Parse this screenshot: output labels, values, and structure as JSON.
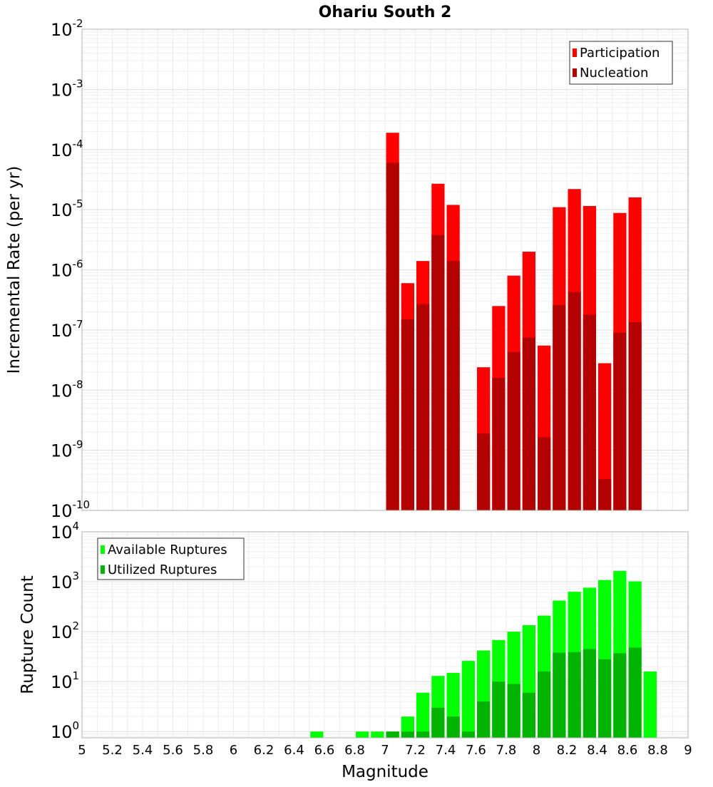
{
  "chart_data": [
    {
      "type": "bar",
      "title": "Ohariu South 2",
      "ylabel": "Incremental Rate (per yr)",
      "xlabel": "",
      "y_scale": "log",
      "ylim": [
        1e-10,
        0.01
      ],
      "xlim": [
        5,
        9
      ],
      "x_tick_labels": [
        "5",
        "5.2",
        "5.4",
        "5.6",
        "5.8",
        "6",
        "6.2",
        "6.4",
        "6.6",
        "6.8",
        "7",
        "7.2",
        "7.4",
        "7.6",
        "7.8",
        "8",
        "8.2",
        "8.4",
        "8.6",
        "8.8",
        "9"
      ],
      "y_tick_exponents": [
        "-2",
        "-3",
        "-4",
        "-5",
        "-6",
        "-7",
        "-8",
        "-9",
        "-10"
      ],
      "y_tick_base": "10",
      "legend_position": "top-right",
      "grid": true,
      "bar_width": 0.1,
      "x": [
        7.05,
        7.15,
        7.25,
        7.35,
        7.45,
        7.55,
        7.65,
        7.75,
        7.85,
        7.95,
        8.05,
        8.15,
        8.25,
        8.35,
        8.45,
        8.55,
        8.65
      ],
      "series": [
        {
          "name": "Participation",
          "color": "#ff0000",
          "values": [
            0.00019,
            6e-07,
            1.4e-06,
            2.7e-05,
            1.2e-05,
            null,
            2.4e-08,
            2.5e-07,
            8e-07,
            2e-06,
            5.5e-08,
            1.1e-05,
            2.2e-05,
            1.15e-05,
            2.8e-08,
            8.8e-06,
            1.6e-05
          ]
        },
        {
          "name": "Nucleation",
          "color": "#b30000",
          "values": [
            6e-05,
            1.5e-07,
            2.7e-07,
            3.8e-06,
            1.4e-06,
            null,
            1.9e-09,
            1.6e-08,
            4.3e-08,
            7.5e-08,
            1.65e-09,
            2.6e-07,
            4.3e-07,
            1.8e-07,
            3.3e-10,
            9e-08,
            1.35e-07
          ]
        }
      ]
    },
    {
      "type": "bar",
      "title": "",
      "ylabel": "Rupture Count",
      "xlabel": "Magnitude",
      "y_scale": "log",
      "ylim": [
        0.75,
        10000
      ],
      "xlim": [
        5,
        9
      ],
      "x_tick_labels": [
        "5",
        "5.2",
        "5.4",
        "5.6",
        "5.8",
        "6",
        "6.2",
        "6.4",
        "6.6",
        "6.8",
        "7",
        "7.2",
        "7.4",
        "7.6",
        "7.8",
        "8",
        "8.2",
        "8.4",
        "8.6",
        "8.8",
        "9"
      ],
      "y_tick_exponents": [
        "4",
        "3",
        "2",
        "1",
        "0"
      ],
      "y_tick_base": "10",
      "legend_position": "top-left",
      "grid": true,
      "bar_width": 0.1,
      "x": [
        6.55,
        6.85,
        6.95,
        7.05,
        7.15,
        7.25,
        7.35,
        7.45,
        7.55,
        7.65,
        7.75,
        7.85,
        7.95,
        8.05,
        8.15,
        8.25,
        8.35,
        8.45,
        8.55,
        8.65,
        8.75
      ],
      "series": [
        {
          "name": "Available Ruptures",
          "color": "#00ff00",
          "values": [
            1,
            1,
            1,
            1,
            2,
            6,
            13,
            15,
            26,
            42,
            68,
            100,
            135,
            210,
            420,
            630,
            760,
            1080,
            1650,
            1020,
            16
          ]
        },
        {
          "name": "Utilized Ruptures",
          "color": "#00b300",
          "values": [
            null,
            null,
            null,
            1,
            1,
            1,
            3,
            2,
            1,
            4,
            10,
            9,
            6,
            16,
            38,
            39,
            45,
            28,
            37,
            48,
            null
          ]
        }
      ]
    }
  ]
}
